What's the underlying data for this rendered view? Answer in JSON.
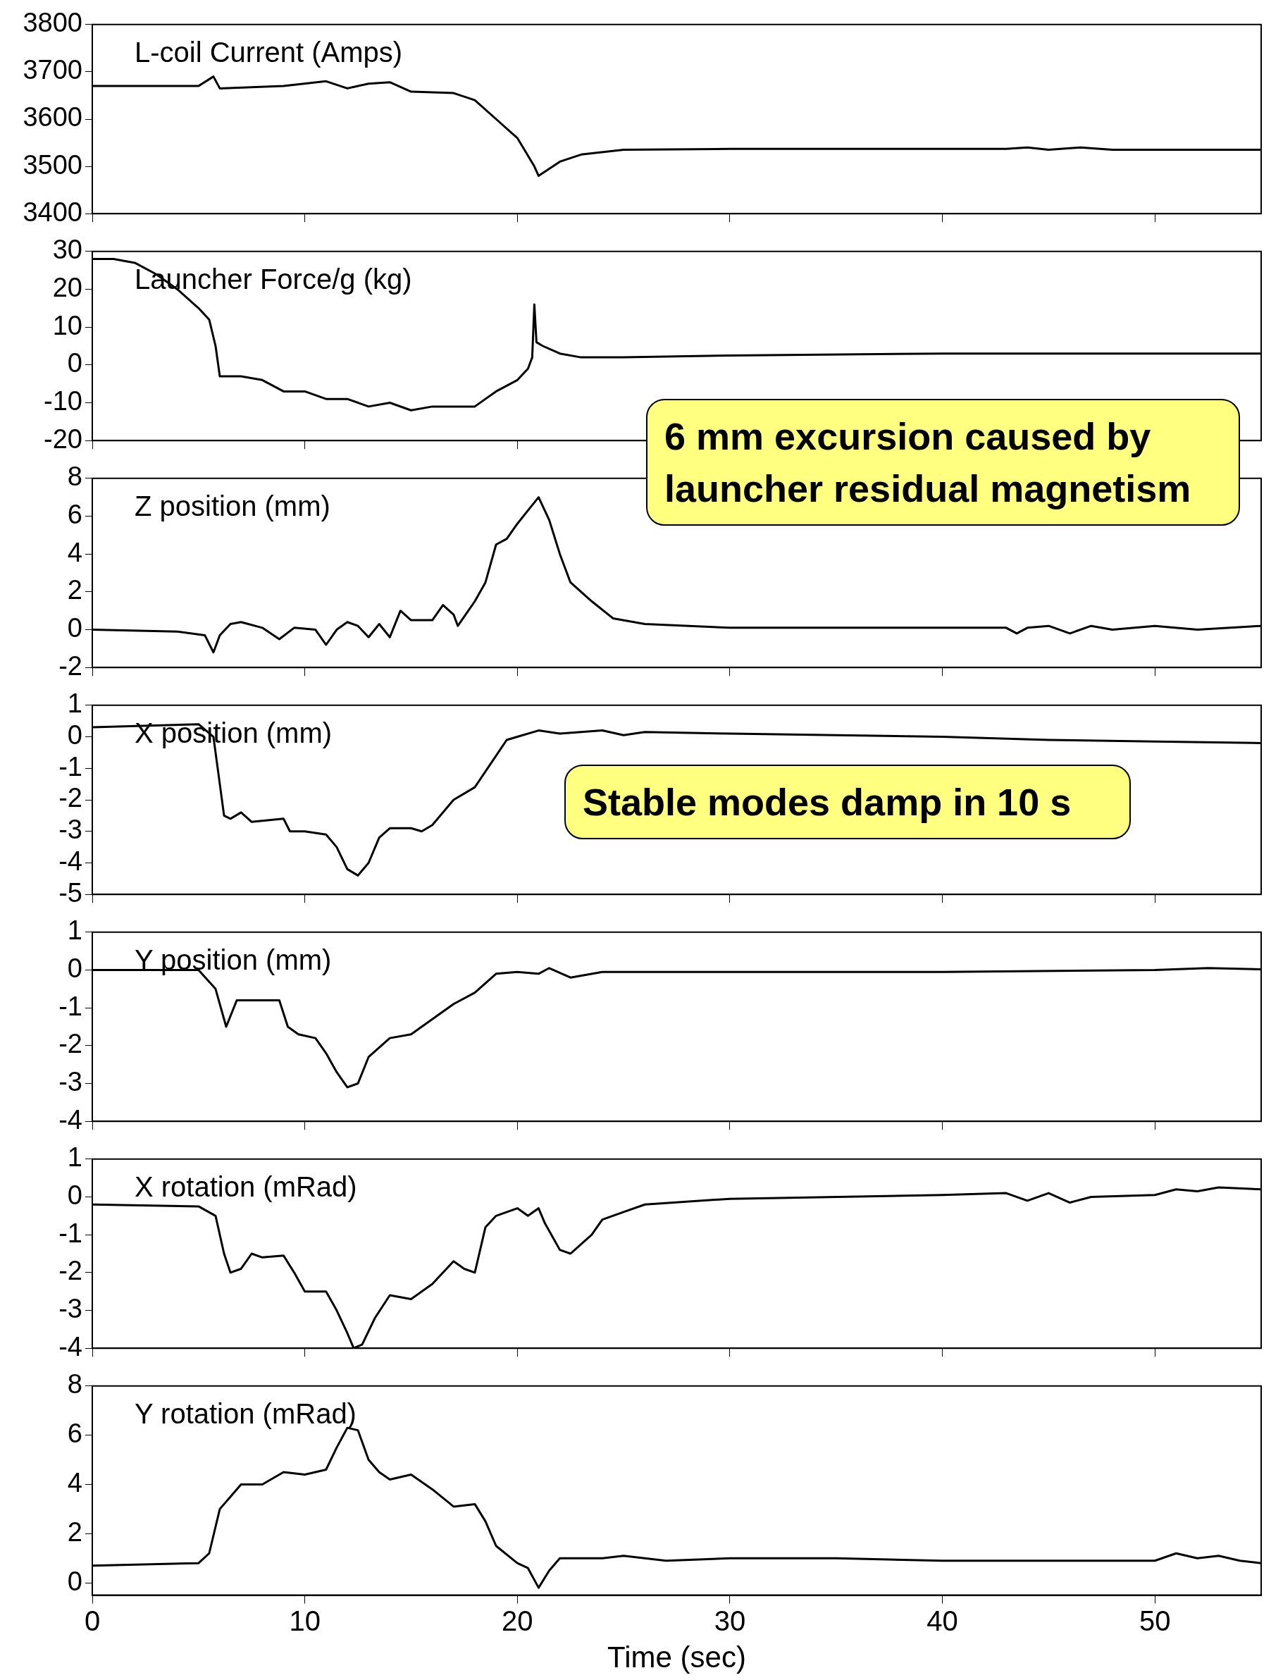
{
  "chart_data": [
    {
      "type": "line",
      "title": "L-coil Current (Amps)",
      "xlim": [
        0,
        55
      ],
      "xticks": [
        0,
        10,
        20,
        30,
        40,
        50
      ],
      "ylim": [
        3400,
        3800
      ],
      "yticks": [
        3400,
        3500,
        3600,
        3700,
        3800
      ],
      "tick_labels": "y",
      "marker": "none",
      "line_style": "solid",
      "series": [
        {
          "color": "#000000",
          "x": [
            0,
            5,
            5.7,
            6,
            9,
            11,
            12,
            13,
            14,
            15,
            17,
            18,
            19,
            20,
            20.8,
            21,
            21.5,
            22,
            23,
            25,
            30,
            43,
            44,
            45,
            46.5,
            48,
            55
          ],
          "values": [
            3670,
            3670,
            3690,
            3665,
            3670,
            3680,
            3665,
            3675,
            3678,
            3658,
            3655,
            3640,
            3600,
            3560,
            3500,
            3480,
            3495,
            3510,
            3525,
            3535,
            3537,
            3537,
            3540,
            3535,
            3540,
            3535,
            3535
          ]
        }
      ]
    },
    {
      "type": "line",
      "title": "Launcher Force/g (kg)",
      "xlim": [
        0,
        55
      ],
      "xticks": [
        0,
        10,
        20,
        30,
        40,
        50
      ],
      "ylim": [
        -20,
        30
      ],
      "yticks": [
        -20,
        -10,
        0,
        10,
        20,
        30
      ],
      "tick_labels": "y",
      "marker": "none",
      "line_style": "solid",
      "annotations": [
        "6 mm excursion caused by launcher residual magnetism"
      ],
      "series": [
        {
          "color": "#000000",
          "x": [
            0,
            1,
            2,
            3,
            4,
            5,
            5.5,
            5.8,
            6,
            7,
            8,
            9,
            10,
            11,
            12,
            13,
            14,
            15,
            16,
            17,
            18,
            18.5,
            19,
            20,
            20.5,
            20.7,
            20.8,
            20.9,
            21.2,
            22,
            23,
            25,
            30,
            40,
            55
          ],
          "values": [
            28,
            28,
            27,
            24,
            20,
            15,
            12,
            5,
            -3,
            -3,
            -4,
            -7,
            -7,
            -9,
            -9,
            -11,
            -10,
            -12,
            -11,
            -11,
            -11,
            -9,
            -7,
            -4,
            -1,
            2,
            16,
            6,
            5,
            3,
            2,
            2,
            2.5,
            3,
            3
          ]
        }
      ]
    },
    {
      "type": "line",
      "title": "Z position (mm)",
      "xlim": [
        0,
        55
      ],
      "xticks": [
        0,
        10,
        20,
        30,
        40,
        50
      ],
      "ylim": [
        -2,
        8
      ],
      "yticks": [
        -2,
        0,
        2,
        4,
        6,
        8
      ],
      "tick_labels": "y",
      "marker": "none",
      "line_style": "solid",
      "series": [
        {
          "color": "#000000",
          "x": [
            0,
            4,
            5.3,
            5.7,
            6,
            6.5,
            7,
            8,
            8.8,
            9.5,
            10.5,
            11,
            11.5,
            12,
            12.5,
            13,
            13.5,
            14,
            14.5,
            15,
            16,
            16.5,
            17,
            17.2,
            18,
            18.5,
            19,
            19.5,
            20,
            20.5,
            21,
            21.5,
            22,
            22.5,
            23.5,
            24.5,
            26,
            30,
            43,
            43.5,
            44,
            45,
            46,
            47,
            48,
            50,
            52,
            55
          ],
          "values": [
            0,
            -0.1,
            -0.3,
            -1.2,
            -0.3,
            0.3,
            0.4,
            0.1,
            -0.5,
            0.1,
            0,
            -0.8,
            0,
            0.4,
            0.2,
            -0.4,
            0.3,
            -0.4,
            1,
            0.5,
            0.5,
            1.3,
            0.8,
            0.2,
            1.5,
            2.5,
            4.5,
            4.8,
            5.6,
            6.3,
            7,
            5.8,
            4,
            2.5,
            1.5,
            0.6,
            0.3,
            0.1,
            0.1,
            -0.2,
            0.1,
            0.2,
            -0.2,
            0.2,
            0,
            0.2,
            0,
            0.2
          ]
        }
      ]
    },
    {
      "type": "line",
      "title": "X position (mm)",
      "xlim": [
        0,
        55
      ],
      "xticks": [
        0,
        10,
        20,
        30,
        40,
        50
      ],
      "ylim": [
        -5,
        1
      ],
      "yticks": [
        -5,
        -4,
        -3,
        -2,
        -1,
        0,
        1
      ],
      "tick_labels": "y",
      "marker": "none",
      "line_style": "solid",
      "annotations": [
        "Stable modes damp in 10 s"
      ],
      "series": [
        {
          "color": "#000000",
          "x": [
            0,
            5,
            5.7,
            6,
            6.2,
            6.5,
            7,
            7.5,
            9,
            9.3,
            10,
            11,
            11.5,
            12,
            12.5,
            13,
            13.5,
            14,
            15,
            15.5,
            16,
            17,
            18,
            19,
            19.5,
            20,
            21,
            22,
            24,
            25,
            26,
            30,
            40,
            45,
            50,
            55
          ],
          "values": [
            0.3,
            0.4,
            0,
            -1.5,
            -2.5,
            -2.6,
            -2.4,
            -2.7,
            -2.6,
            -3,
            -3,
            -3.1,
            -3.5,
            -4.2,
            -4.4,
            -4,
            -3.2,
            -2.9,
            -2.9,
            -3,
            -2.8,
            -2,
            -1.6,
            -0.6,
            -0.1,
            0,
            0.2,
            0.1,
            0.2,
            0.05,
            0.15,
            0.1,
            0,
            -0.1,
            -0.15,
            -0.2
          ]
        }
      ]
    },
    {
      "type": "line",
      "title": "Y position (mm)",
      "xlim": [
        0,
        55
      ],
      "xticks": [
        0,
        10,
        20,
        30,
        40,
        50
      ],
      "ylim": [
        -4,
        1
      ],
      "yticks": [
        -4,
        -3,
        -2,
        -1,
        0,
        1
      ],
      "tick_labels": "y",
      "marker": "none",
      "line_style": "solid",
      "series": [
        {
          "color": "#000000",
          "x": [
            0,
            5,
            5.8,
            6.3,
            6.8,
            7.5,
            8.8,
            9.2,
            9.7,
            10.5,
            11,
            11.5,
            12,
            12.5,
            13,
            14,
            15,
            16,
            17,
            18,
            19,
            20,
            21,
            21.5,
            22.5,
            24,
            30,
            40,
            50,
            52.5,
            55
          ],
          "values": [
            0,
            0,
            -0.5,
            -1.5,
            -0.8,
            -0.8,
            -0.8,
            -1.5,
            -1.7,
            -1.8,
            -2.2,
            -2.7,
            -3.1,
            -3,
            -2.3,
            -1.8,
            -1.7,
            -1.3,
            -0.9,
            -0.6,
            -0.1,
            -0.05,
            -0.1,
            0.05,
            -0.2,
            -0.05,
            -0.05,
            -0.05,
            0,
            0.05,
            0.02
          ]
        }
      ]
    },
    {
      "type": "line",
      "title": "X rotation (mRad)",
      "xlim": [
        0,
        55
      ],
      "xticks": [
        0,
        10,
        20,
        30,
        40,
        50
      ],
      "ylim": [
        -4,
        1
      ],
      "yticks": [
        -4,
        -3,
        -2,
        -1,
        0,
        1
      ],
      "tick_labels": "y",
      "marker": "none",
      "line_style": "solid",
      "series": [
        {
          "color": "#000000",
          "x": [
            0,
            5,
            5.8,
            6.2,
            6.5,
            7,
            7.5,
            8,
            9,
            9.5,
            10,
            11,
            11.5,
            12,
            12.3,
            12.7,
            13.3,
            14,
            15,
            16,
            17,
            17.5,
            18,
            18.5,
            19,
            20,
            20.5,
            21,
            21.3,
            22,
            22.5,
            23.5,
            24,
            25,
            26,
            30,
            40,
            43,
            44,
            45,
            46,
            47,
            50,
            51,
            52,
            53,
            55
          ],
          "values": [
            -0.2,
            -0.25,
            -0.5,
            -1.5,
            -2,
            -1.9,
            -1.5,
            -1.6,
            -1.55,
            -2,
            -2.5,
            -2.5,
            -3,
            -3.6,
            -4,
            -3.9,
            -3.2,
            -2.6,
            -2.7,
            -2.3,
            -1.7,
            -1.9,
            -2,
            -0.8,
            -0.5,
            -0.3,
            -0.5,
            -0.3,
            -0.7,
            -1.4,
            -1.5,
            -1,
            -0.6,
            -0.4,
            -0.2,
            -0.05,
            0.05,
            0.1,
            -0.1,
            0.1,
            -0.15,
            0,
            0.05,
            0.2,
            0.15,
            0.25,
            0.2
          ]
        }
      ]
    },
    {
      "type": "line",
      "title": "Y rotation (mRad)",
      "xlabel": "Time (sec)",
      "xlim": [
        0,
        55
      ],
      "xticks": [
        0,
        10,
        20,
        30,
        40,
        50
      ],
      "ylim": [
        -0.5,
        8
      ],
      "yticks": [
        0,
        2,
        4,
        6,
        8
      ],
      "marker": "none",
      "line_style": "solid",
      "series": [
        {
          "color": "#000000",
          "x": [
            0,
            5,
            5.5,
            6,
            6.5,
            7,
            8,
            9,
            10,
            11,
            11.5,
            12,
            12.5,
            13,
            13.5,
            14,
            15,
            16,
            17,
            18,
            18.5,
            19,
            20,
            20.5,
            21,
            21.5,
            22,
            24,
            25,
            27,
            30,
            35,
            40,
            45,
            50,
            51,
            52,
            53,
            54,
            55
          ],
          "values": [
            0.7,
            0.8,
            1.2,
            3,
            3.5,
            4,
            4,
            4.5,
            4.4,
            4.6,
            5.5,
            6.3,
            6.2,
            5,
            4.5,
            4.2,
            4.4,
            3.8,
            3.1,
            3.2,
            2.5,
            1.5,
            0.8,
            0.6,
            -0.2,
            0.5,
            1,
            1,
            1.1,
            0.9,
            1,
            1,
            0.9,
            0.9,
            0.9,
            1.2,
            1,
            1.1,
            0.9,
            0.8
          ]
        }
      ]
    }
  ]
}
